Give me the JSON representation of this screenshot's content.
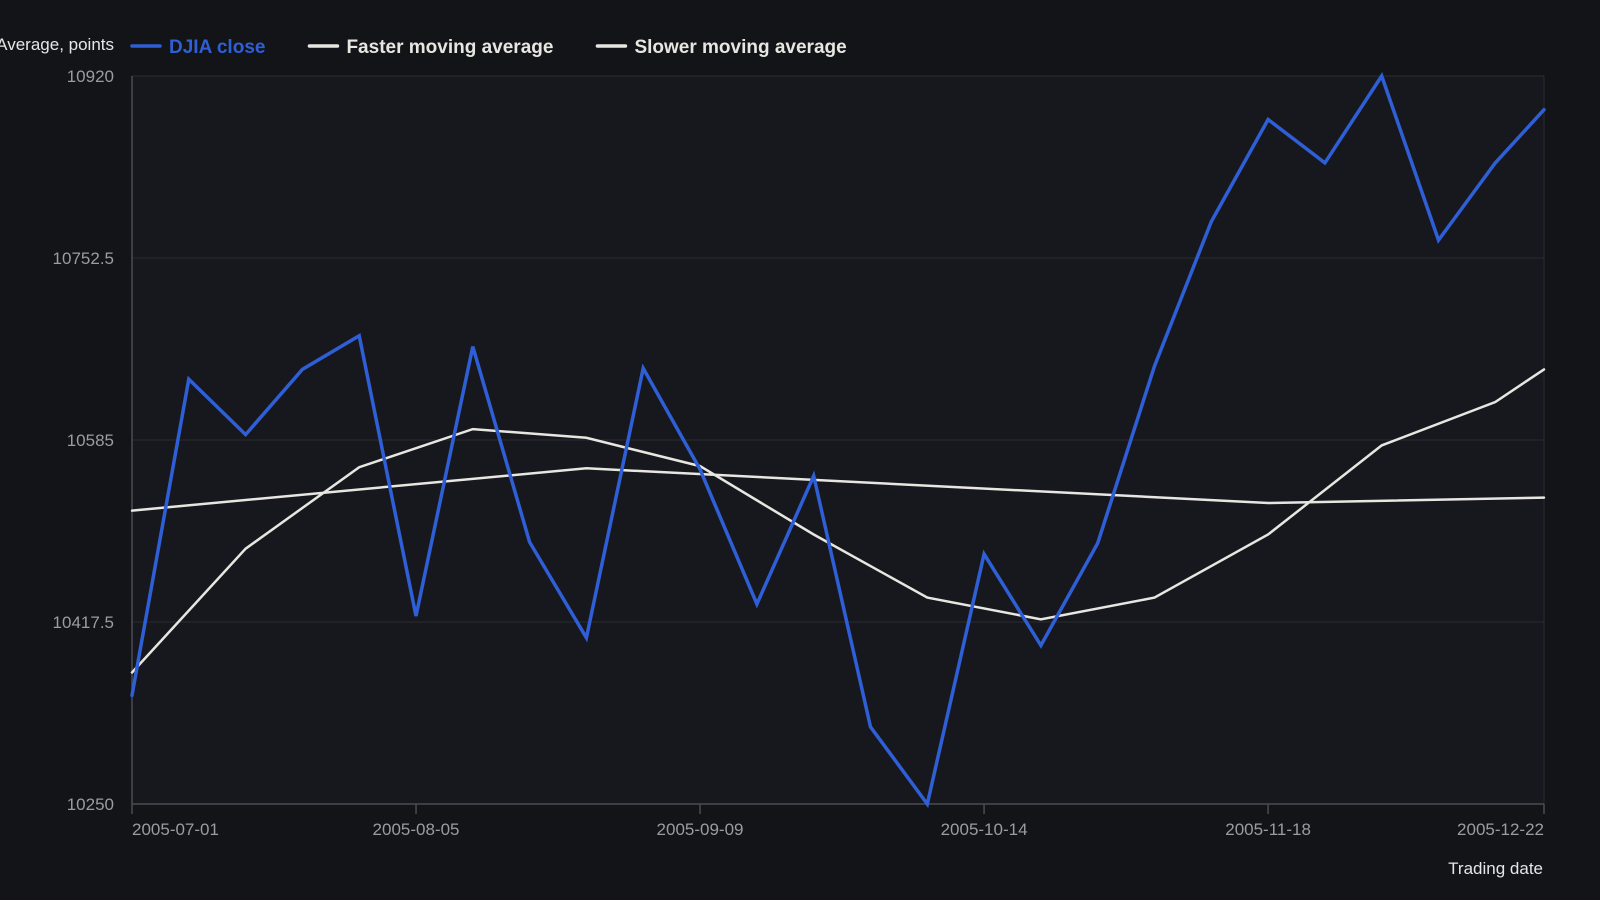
{
  "chart_data": {
    "type": "line",
    "ylabel": "Dow Jones Industrial Average, points",
    "xlabel": "Trading date",
    "ylim": [
      10250,
      10920
    ],
    "yticks": [
      10250,
      10417.5,
      10585,
      10752.5,
      10920
    ],
    "ytick_labels": [
      "10250",
      "10417.5",
      "10585",
      "10752.5",
      "10920"
    ],
    "xticks": [
      "2005-07-01",
      "2005-08-05",
      "2005-09-09",
      "2005-10-14",
      "2005-11-18",
      "2005-12-22"
    ],
    "x": [
      "2005-07-01",
      "2005-07-08",
      "2005-07-15",
      "2005-07-22",
      "2005-07-29",
      "2005-08-05",
      "2005-08-12",
      "2005-08-19",
      "2005-08-26",
      "2005-09-02",
      "2005-09-09",
      "2005-09-16",
      "2005-09-23",
      "2005-09-30",
      "2005-10-07",
      "2005-10-14",
      "2005-10-21",
      "2005-10-28",
      "2005-11-04",
      "2005-11-11",
      "2005-11-18",
      "2005-11-25",
      "2005-12-02",
      "2005-12-09",
      "2005-12-16",
      "2005-12-22"
    ],
    "grid": true,
    "legend_position": "top-left",
    "series": [
      {
        "name": "DJIA close",
        "color": "#2f5fd6",
        "values": [
          10350,
          10641,
          10590,
          10650,
          10681,
          10423,
          10671,
          10491,
          10403,
          10651,
          10558,
          10434,
          10552,
          10321,
          10250,
          10480,
          10396,
          10490,
          10653,
          10786,
          10880,
          10840,
          10920,
          10769,
          10840,
          10889
        ]
      },
      {
        "name": "Faster moving average",
        "color": "#e8e6e1",
        "values": [
          10371,
          null,
          10485,
          null,
          10560,
          null,
          10595,
          null,
          10587,
          null,
          10561,
          null,
          10498,
          null,
          10440,
          null,
          10420,
          null,
          10440,
          null,
          10498,
          null,
          10580,
          null,
          10620,
          10650
        ]
      },
      {
        "name": "Slower moving average",
        "color": "#e8e6e1",
        "values": [
          10520,
          null,
          null,
          null,
          null,
          null,
          null,
          null,
          10559,
          null,
          null,
          null,
          null,
          null,
          null,
          null,
          null,
          null,
          null,
          null,
          10527,
          null,
          null,
          null,
          null,
          10532
        ]
      }
    ]
  }
}
